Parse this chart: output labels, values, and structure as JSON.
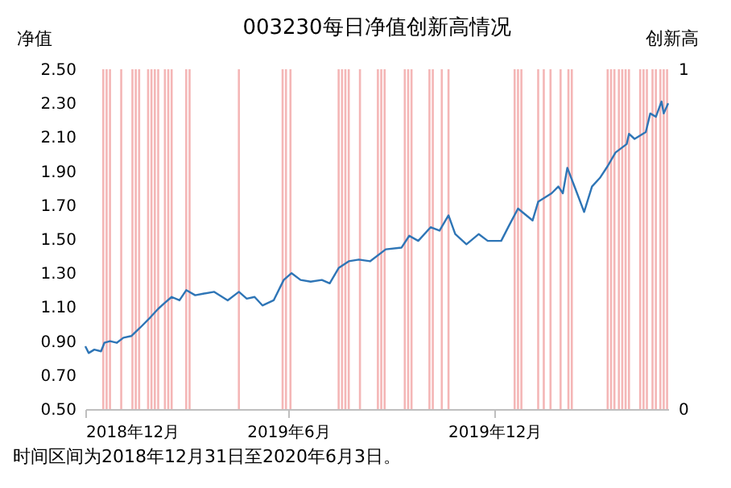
{
  "chart_data": {
    "type": "line",
    "title": "003230每日净值创新高情况",
    "ylabel": "净值",
    "y2label": "创新高",
    "xlim": [
      "2018-12-31",
      "2020-06-03"
    ],
    "xticks": [
      {
        "value": "2018-12-31",
        "label": "2018年12月"
      },
      {
        "value": "2019-06-30",
        "label": "2019年6月"
      },
      {
        "value": "2019-12-31",
        "label": "2019年12月"
      }
    ],
    "ylim": [
      0.5,
      2.5
    ],
    "yticks": [
      {
        "value": 0.5,
        "label": "0.50"
      },
      {
        "value": 0.7,
        "label": "0.70"
      },
      {
        "value": 0.9,
        "label": "0.90"
      },
      {
        "value": 1.1,
        "label": "1.10"
      },
      {
        "value": 1.3,
        "label": "1.30"
      },
      {
        "value": 1.5,
        "label": "1.50"
      },
      {
        "value": 1.7,
        "label": "1.70"
      },
      {
        "value": 1.9,
        "label": "1.90"
      },
      {
        "value": 2.1,
        "label": "2.10"
      },
      {
        "value": 2.3,
        "label": "2.30"
      },
      {
        "value": 2.5,
        "label": "2.50"
      }
    ],
    "y2lim": [
      0,
      1
    ],
    "y2ticks": [
      0,
      1
    ],
    "series": [
      {
        "type": "bar",
        "axis": "y2",
        "color": "#f4b6b6",
        "x": [
          "2019-01-16",
          "2019-01-19",
          "2019-01-22",
          "2019-02-01",
          "2019-02-11",
          "2019-02-14",
          "2019-02-17",
          "2019-02-25",
          "2019-02-28",
          "2019-03-03",
          "2019-03-06",
          "2019-03-12",
          "2019-03-15",
          "2019-03-18",
          "2019-03-31",
          "2019-04-03",
          "2019-05-17",
          "2019-06-25",
          "2019-06-28",
          "2019-07-02",
          "2019-08-14",
          "2019-08-17",
          "2019-08-20",
          "2019-08-23",
          "2019-09-02",
          "2019-09-18",
          "2019-09-21",
          "2019-09-24",
          "2019-10-12",
          "2019-10-15",
          "2019-10-18",
          "2019-11-03",
          "2019-11-06",
          "2019-11-14",
          "2019-11-20",
          "2020-01-18",
          "2020-01-21",
          "2020-01-24",
          "2020-02-08",
          "2020-02-13",
          "2020-02-19",
          "2020-02-28",
          "2020-03-06",
          "2020-03-09",
          "2020-04-10",
          "2020-04-13",
          "2020-04-16",
          "2020-04-20",
          "2020-04-23",
          "2020-04-26",
          "2020-04-29",
          "2020-05-09",
          "2020-05-12",
          "2020-05-15",
          "2020-05-20",
          "2020-05-23",
          "2020-05-27",
          "2020-05-30",
          "2020-06-02"
        ],
        "values": [
          1,
          1,
          1,
          1,
          1,
          1,
          1,
          1,
          1,
          1,
          1,
          1,
          1,
          1,
          1,
          1,
          1,
          1,
          1,
          1,
          1,
          1,
          1,
          1,
          1,
          1,
          1,
          1,
          1,
          1,
          1,
          1,
          1,
          1,
          1,
          1,
          1,
          1,
          1,
          1,
          1,
          1,
          1,
          1,
          1,
          1,
          1,
          1,
          1,
          1,
          1,
          1,
          1,
          1,
          1,
          1,
          1,
          1,
          1
        ]
      },
      {
        "color": "#2e75b6",
        "x": [
          "2018-12-31",
          "2019-01-03",
          "2019-01-08",
          "2019-01-14",
          "2019-01-17",
          "2019-01-22",
          "2019-01-28",
          "2019-02-03",
          "2019-02-10",
          "2019-02-18",
          "2019-02-27",
          "2019-03-06",
          "2019-03-11",
          "2019-03-18",
          "2019-03-25",
          "2019-03-31",
          "2019-04-08",
          "2019-04-16",
          "2019-04-25",
          "2019-05-07",
          "2019-05-17",
          "2019-05-24",
          "2019-05-31",
          "2019-06-07",
          "2019-06-17",
          "2019-06-26",
          "2019-07-03",
          "2019-07-11",
          "2019-07-20",
          "2019-07-30",
          "2019-08-06",
          "2019-08-14",
          "2019-08-23",
          "2019-09-01",
          "2019-09-11",
          "2019-09-25",
          "2019-10-09",
          "2019-10-16",
          "2019-10-24",
          "2019-11-04",
          "2019-11-12",
          "2019-11-20",
          "2019-11-26",
          "2019-12-06",
          "2019-12-17",
          "2019-12-25",
          "2020-01-06",
          "2020-01-13",
          "2020-01-21",
          "2020-02-03",
          "2020-02-08",
          "2020-02-20",
          "2020-02-26",
          "2020-03-01",
          "2020-03-05",
          "2020-03-12",
          "2020-03-20",
          "2020-03-27",
          "2020-04-03",
          "2020-04-10",
          "2020-04-17",
          "2020-04-27",
          "2020-04-29",
          "2020-05-04",
          "2020-05-14",
          "2020-05-18",
          "2020-05-23",
          "2020-05-28",
          "2020-05-30",
          "2020-06-03"
        ],
        "values": [
          0.87,
          0.83,
          0.85,
          0.84,
          0.89,
          0.9,
          0.89,
          0.92,
          0.93,
          0.98,
          1.04,
          1.09,
          1.12,
          1.16,
          1.14,
          1.2,
          1.17,
          1.18,
          1.19,
          1.14,
          1.19,
          1.15,
          1.16,
          1.11,
          1.14,
          1.26,
          1.3,
          1.26,
          1.25,
          1.26,
          1.24,
          1.33,
          1.37,
          1.38,
          1.37,
          1.44,
          1.45,
          1.52,
          1.49,
          1.57,
          1.55,
          1.64,
          1.53,
          1.47,
          1.53,
          1.49,
          1.49,
          1.58,
          1.68,
          1.61,
          1.72,
          1.77,
          1.81,
          1.77,
          1.92,
          1.8,
          1.66,
          1.81,
          1.86,
          1.93,
          2.01,
          2.06,
          2.12,
          2.09,
          2.13,
          2.24,
          2.22,
          2.31,
          2.24,
          2.3
        ]
      }
    ],
    "annotations": [
      "时间区间为2018年12月31日至2020年6月3日。"
    ]
  }
}
